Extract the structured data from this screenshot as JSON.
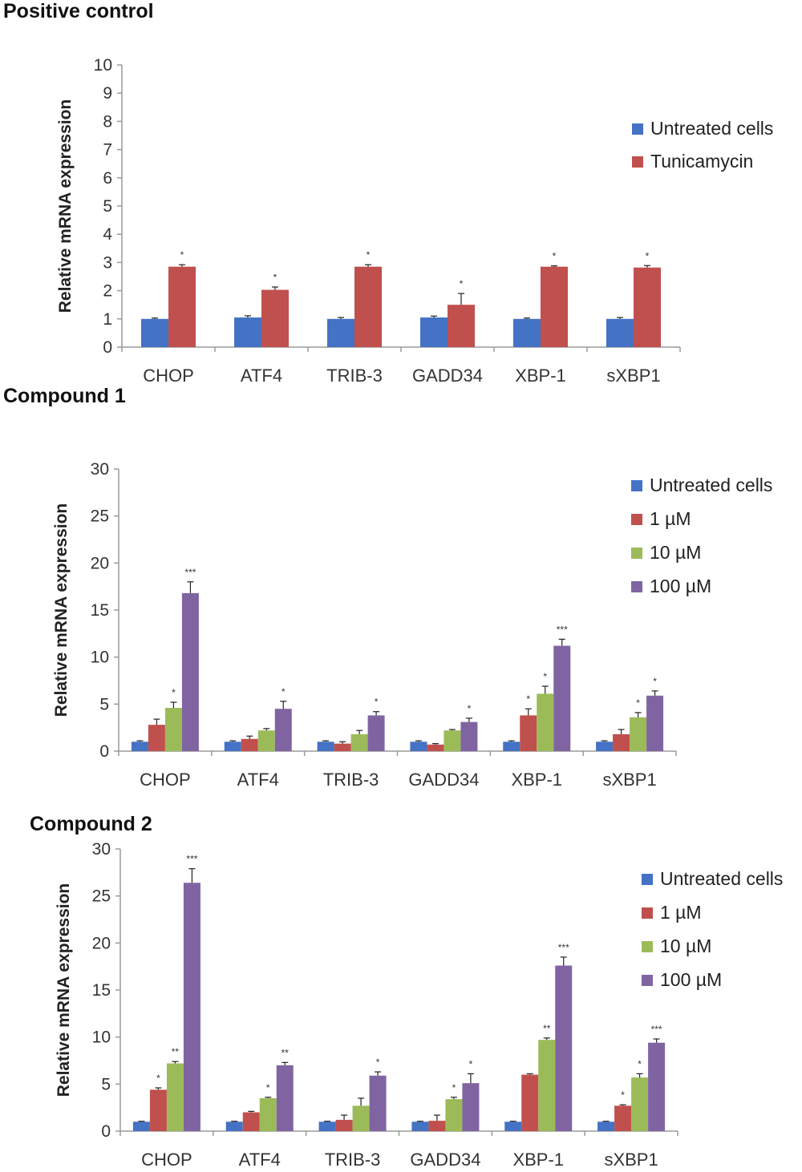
{
  "chart_data": [
    {
      "type": "bar",
      "title": "Positive control",
      "ylabel": "Relative mRNA expression",
      "ylim": [
        0,
        10
      ],
      "yticks": [
        0,
        1,
        2,
        3,
        4,
        5,
        6,
        7,
        8,
        9,
        10
      ],
      "categories": [
        "CHOP",
        "ATF4",
        "TRIB-3",
        "GADD34",
        "XBP-1",
        "sXBP1"
      ],
      "legend_position": "right",
      "series": [
        {
          "name": "Untreated cells",
          "color": "#4472C4",
          "values": [
            1.0,
            1.05,
            1.0,
            1.05,
            1.0,
            1.0
          ],
          "errors": [
            0.03,
            0.06,
            0.05,
            0.05,
            0.03,
            0.05
          ],
          "stars": [
            "",
            "",
            "",
            "",
            "",
            ""
          ]
        },
        {
          "name": "Tunicamycin",
          "color": "#C0504D",
          "values": [
            2.85,
            2.03,
            2.85,
            1.5,
            2.85,
            2.82
          ],
          "errors": [
            0.07,
            0.1,
            0.07,
            0.4,
            0.03,
            0.07
          ],
          "stars": [
            "*",
            "*",
            "*",
            "*",
            "*",
            "*"
          ]
        }
      ]
    },
    {
      "type": "bar",
      "title": "Compound 1",
      "ylabel": "Relative mRNA expression",
      "ylim": [
        0,
        30
      ],
      "yticks": [
        0,
        5,
        10,
        15,
        20,
        25,
        30
      ],
      "categories": [
        "CHOP",
        "ATF4",
        "TRIB-3",
        "GADD34",
        "XBP-1",
        "sXBP1"
      ],
      "legend_position": "right",
      "series": [
        {
          "name": "Untreated cells",
          "color": "#4472C4",
          "values": [
            1.0,
            1.0,
            1.0,
            1.0,
            1.0,
            1.0
          ],
          "errors": [
            0.1,
            0.1,
            0.1,
            0.1,
            0.1,
            0.1
          ],
          "stars": [
            "",
            "",
            "",
            "",
            "",
            ""
          ]
        },
        {
          "name": "1 µM",
          "color": "#C0504D",
          "values": [
            2.8,
            1.3,
            0.8,
            0.7,
            3.8,
            1.8
          ],
          "errors": [
            0.6,
            0.3,
            0.2,
            0.1,
            0.7,
            0.5
          ],
          "stars": [
            "",
            "",
            "",
            "",
            "*",
            ""
          ]
        },
        {
          "name": "10 µM",
          "color": "#9BBB59",
          "values": [
            4.6,
            2.2,
            1.8,
            2.2,
            6.1,
            3.6
          ],
          "errors": [
            0.6,
            0.2,
            0.4,
            0.1,
            0.8,
            0.5
          ],
          "stars": [
            "*",
            "",
            "",
            "",
            "*",
            "*"
          ]
        },
        {
          "name": "100 µM",
          "color": "#8064A2",
          "values": [
            16.8,
            4.5,
            3.8,
            3.1,
            11.2,
            5.9
          ],
          "errors": [
            1.2,
            0.8,
            0.4,
            0.4,
            0.7,
            0.5
          ],
          "stars": [
            "***",
            "*",
            "*",
            "*",
            "***",
            "*"
          ]
        }
      ]
    },
    {
      "type": "bar",
      "title": "Compound 2",
      "ylabel": "Relative mRNA expression",
      "ylim": [
        0,
        30
      ],
      "yticks": [
        0,
        5,
        10,
        15,
        20,
        25,
        30
      ],
      "categories": [
        "CHOP",
        "ATF4",
        "TRIB-3",
        "GADD34",
        "XBP-1",
        "sXBP1"
      ],
      "legend_position": "right",
      "series": [
        {
          "name": "Untreated cells",
          "color": "#4472C4",
          "values": [
            1.0,
            1.0,
            1.0,
            1.0,
            1.0,
            1.0
          ],
          "errors": [
            0.05,
            0.05,
            0.05,
            0.05,
            0.05,
            0.05
          ],
          "stars": [
            "",
            "",
            "",
            "",
            "",
            ""
          ]
        },
        {
          "name": "1 µM",
          "color": "#C0504D",
          "values": [
            4.4,
            2.0,
            1.2,
            1.1,
            6.0,
            2.7
          ],
          "errors": [
            0.2,
            0.1,
            0.5,
            0.6,
            0.1,
            0.1
          ],
          "stars": [
            "*",
            "",
            "",
            "",
            "",
            "*"
          ]
        },
        {
          "name": "10 µM",
          "color": "#9BBB59",
          "values": [
            7.2,
            3.5,
            2.7,
            3.4,
            9.7,
            5.7
          ],
          "errors": [
            0.2,
            0.1,
            0.8,
            0.2,
            0.2,
            0.4
          ],
          "stars": [
            "**",
            "*",
            "",
            "*",
            "**",
            "*"
          ]
        },
        {
          "name": "100 µM",
          "color": "#8064A2",
          "values": [
            26.4,
            7.0,
            5.9,
            5.1,
            17.6,
            9.4
          ],
          "errors": [
            1.5,
            0.3,
            0.4,
            1.0,
            0.9,
            0.4
          ],
          "stars": [
            "***",
            "**",
            "*",
            "*",
            "***",
            "***"
          ]
        }
      ]
    }
  ]
}
